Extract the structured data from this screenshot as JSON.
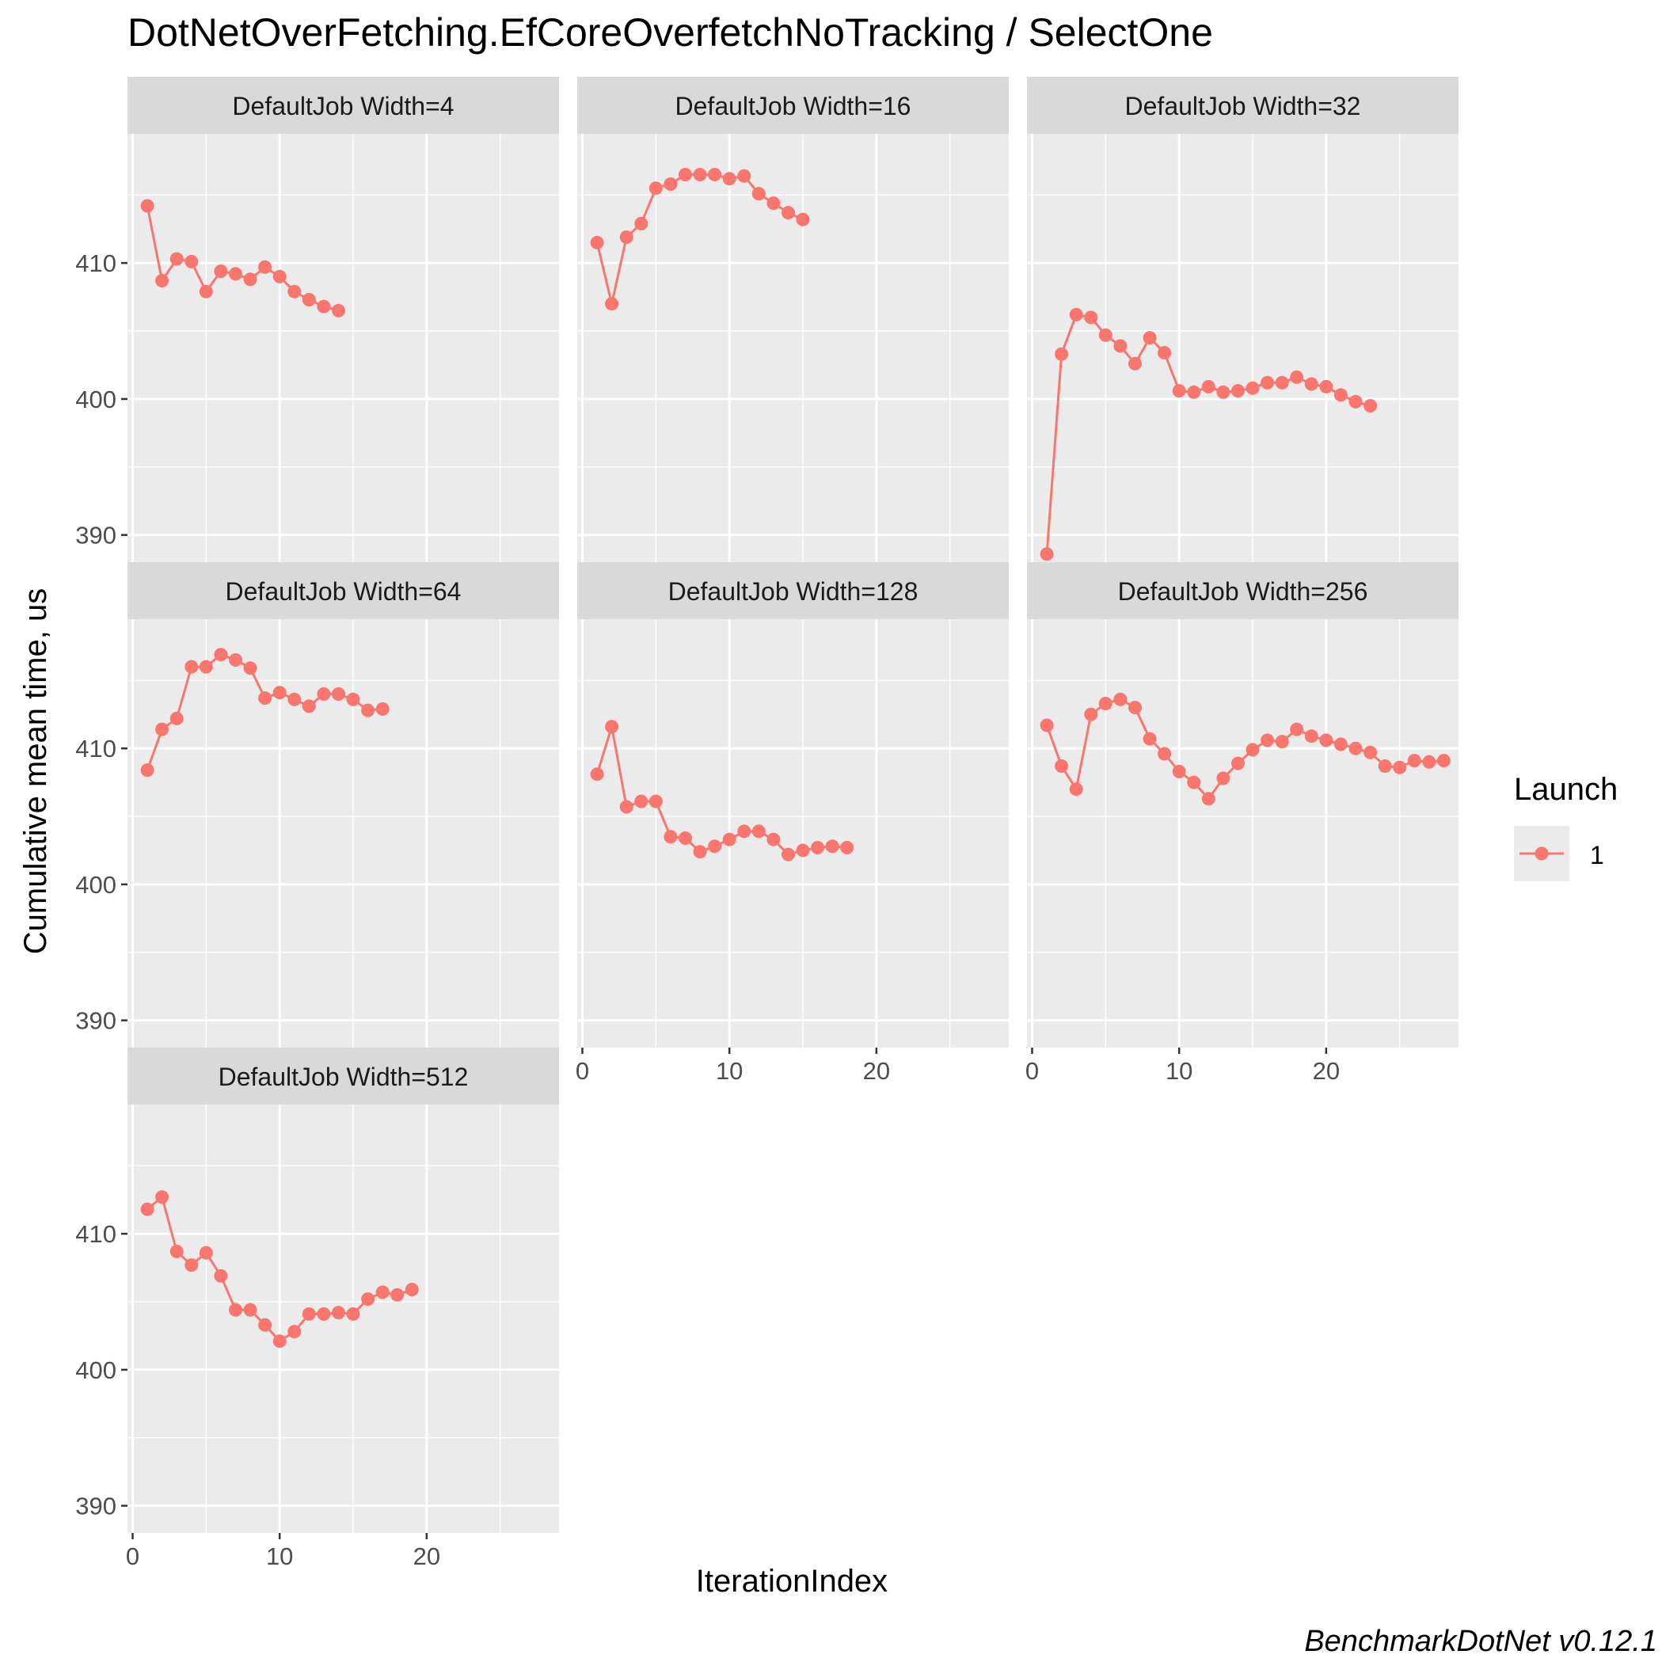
{
  "chart_data": {
    "type": "line",
    "title": "DotNetOverFetching.EfCoreOverfetchNoTracking / SelectOne",
    "xlabel": "IterationIndex",
    "ylabel": "Cumulative mean time, us",
    "caption": "BenchmarkDotNet v0.12.1",
    "xlim": [
      -0.35,
      29
    ],
    "ylim": [
      388,
      419.5
    ],
    "x_ticks": [
      0,
      10,
      20
    ],
    "y_ticks": [
      390,
      400,
      410
    ],
    "grid": true,
    "legend": {
      "title": "Launch",
      "position": "right",
      "entries": [
        "1"
      ]
    },
    "series_color": "#F8766D",
    "panels": [
      {
        "label": "DefaultJob Width=4",
        "series": [
          {
            "name": "1",
            "x": [
              1,
              2,
              3,
              4,
              5,
              6,
              7,
              8,
              9,
              10,
              11,
              12,
              13,
              14
            ],
            "y": [
              414.2,
              408.7,
              410.3,
              410.1,
              407.9,
              409.4,
              409.2,
              408.8,
              409.7,
              409.0,
              407.9,
              407.3,
              406.8,
              406.5
            ]
          }
        ]
      },
      {
        "label": "DefaultJob Width=16",
        "series": [
          {
            "name": "1",
            "x": [
              1,
              2,
              3,
              4,
              5,
              6,
              7,
              8,
              9,
              10,
              11,
              12,
              13,
              14,
              15
            ],
            "y": [
              411.5,
              407.0,
              411.9,
              412.9,
              415.5,
              415.8,
              416.5,
              416.5,
              416.5,
              416.2,
              416.4,
              415.1,
              414.4,
              413.7,
              413.2
            ]
          }
        ]
      },
      {
        "label": "DefaultJob Width=32",
        "series": [
          {
            "name": "1",
            "x": [
              1,
              2,
              3,
              4,
              5,
              6,
              7,
              8,
              9,
              10,
              11,
              12,
              13,
              14,
              15,
              16,
              17,
              18,
              19,
              20,
              21,
              22,
              23
            ],
            "y": [
              388.6,
              403.3,
              406.2,
              406.0,
              404.7,
              403.9,
              402.6,
              404.5,
              403.4,
              400.6,
              400.5,
              400.9,
              400.5,
              400.6,
              400.8,
              401.2,
              401.2,
              401.6,
              401.1,
              400.9,
              400.3,
              399.8,
              399.5
            ]
          }
        ]
      },
      {
        "label": "DefaultJob Width=64",
        "series": [
          {
            "name": "1",
            "x": [
              1,
              2,
              3,
              4,
              5,
              6,
              7,
              8,
              9,
              10,
              11,
              12,
              13,
              14,
              15,
              16,
              17
            ],
            "y": [
              408.4,
              411.4,
              412.2,
              416.0,
              416.0,
              416.9,
              416.5,
              415.9,
              413.7,
              414.1,
              413.6,
              413.1,
              414.0,
              414.0,
              413.6,
              412.8,
              412.9
            ]
          }
        ]
      },
      {
        "label": "DefaultJob Width=128",
        "series": [
          {
            "name": "1",
            "x": [
              1,
              2,
              3,
              4,
              5,
              6,
              7,
              8,
              9,
              10,
              11,
              12,
              13,
              14,
              15,
              16,
              17,
              18
            ],
            "y": [
              408.1,
              411.6,
              405.7,
              406.1,
              406.1,
              403.5,
              403.4,
              402.4,
              402.8,
              403.3,
              403.9,
              403.9,
              403.3,
              402.2,
              402.5,
              402.7,
              402.8,
              402.7
            ]
          }
        ]
      },
      {
        "label": "DefaultJob Width=256",
        "series": [
          {
            "name": "1",
            "x": [
              1,
              2,
              3,
              4,
              5,
              6,
              7,
              8,
              9,
              10,
              11,
              12,
              13,
              14,
              15,
              16,
              17,
              18,
              19,
              20,
              21,
              22,
              23,
              24,
              25,
              26,
              27,
              28
            ],
            "y": [
              411.7,
              408.7,
              407.0,
              412.5,
              413.3,
              413.6,
              413.0,
              410.7,
              409.6,
              408.3,
              407.5,
              406.3,
              407.8,
              408.9,
              409.9,
              410.6,
              410.5,
              411.4,
              410.9,
              410.6,
              410.3,
              410.0,
              409.7,
              408.7,
              408.6,
              409.1,
              409.0,
              409.1
            ]
          }
        ]
      },
      {
        "label": "DefaultJob Width=512",
        "series": [
          {
            "name": "1",
            "x": [
              1,
              2,
              3,
              4,
              5,
              6,
              7,
              8,
              9,
              10,
              11,
              12,
              13,
              14,
              15,
              16,
              17,
              18,
              19
            ],
            "y": [
              411.8,
              412.7,
              408.7,
              407.7,
              408.6,
              406.9,
              404.4,
              404.4,
              403.3,
              402.1,
              402.8,
              404.1,
              404.1,
              404.2,
              404.1,
              405.2,
              405.7,
              405.5,
              405.9
            ]
          }
        ]
      }
    ]
  }
}
